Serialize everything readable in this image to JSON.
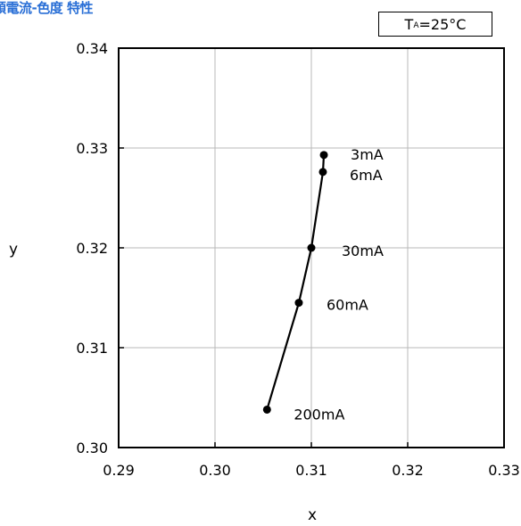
{
  "title": "順電流-色度 特性",
  "condition": {
    "label": "T",
    "subscript": "A",
    "value": "=25°C"
  },
  "chart_data": {
    "type": "line",
    "title": "順電流-色度 特性",
    "xlabel": "x",
    "ylabel": "y",
    "xlim": [
      0.29,
      0.33
    ],
    "ylim": [
      0.3,
      0.34
    ],
    "xticks": [
      "0.29",
      "0.30",
      "0.31",
      "0.32",
      "0.33"
    ],
    "yticks": [
      "0.30",
      "0.31",
      "0.32",
      "0.33",
      "0.34"
    ],
    "grid": true,
    "series": [
      {
        "points": [
          {
            "x": 0.3113,
            "y": 0.3293,
            "label": "3mA"
          },
          {
            "x": 0.3112,
            "y": 0.3276,
            "label": "6mA"
          },
          {
            "x": 0.31,
            "y": 0.32,
            "label": "30mA"
          },
          {
            "x": 0.3087,
            "y": 0.3145,
            "label": "60mA"
          },
          {
            "x": 0.3054,
            "y": 0.3038,
            "label": "200mA"
          }
        ]
      }
    ]
  }
}
